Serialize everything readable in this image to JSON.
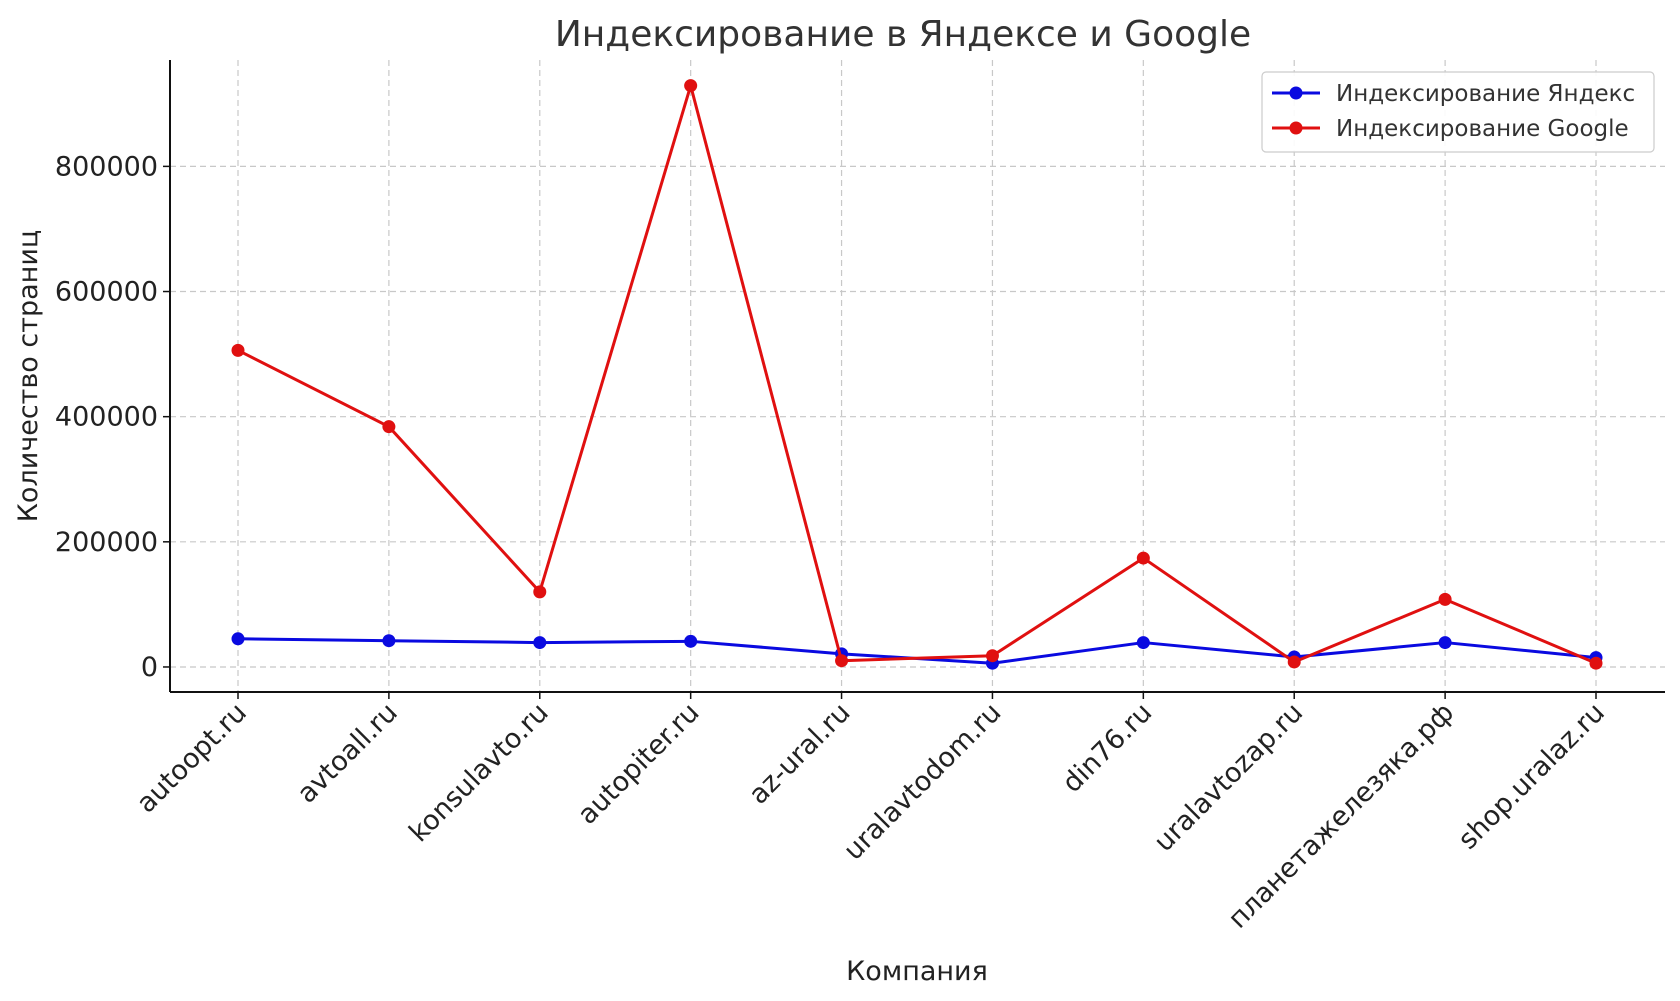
{
  "chart_data": {
    "type": "line",
    "title": "Индексирование в Яндексе и Google",
    "xlabel": "Компания",
    "ylabel": "Количество страниц",
    "categories": [
      "autoopt.ru",
      "avtoall.ru",
      "konsulavto.ru",
      "autopiter.ru",
      "az-ural.ru",
      "uralavtodom.ru",
      "din76.ru",
      "uralavtozap.ru",
      "планетажелезяка.рф",
      "shop.uralaz.ru"
    ],
    "series": [
      {
        "name": "Индексирование Яндекс",
        "color": "#0a0ae0",
        "values": [
          45000,
          42000,
          39000,
          41000,
          21000,
          6000,
          39000,
          16000,
          39000,
          15000
        ]
      },
      {
        "name": "Индексирование Google",
        "color": "#e01010",
        "values": [
          506000,
          384000,
          120000,
          929000,
          10000,
          18000,
          174000,
          8000,
          108000,
          6000
        ]
      }
    ],
    "yticks": [
      0,
      200000,
      400000,
      600000,
      800000
    ],
    "ylim": [
      -40000,
      970000
    ],
    "grid": true,
    "legend_position": "top-right"
  }
}
